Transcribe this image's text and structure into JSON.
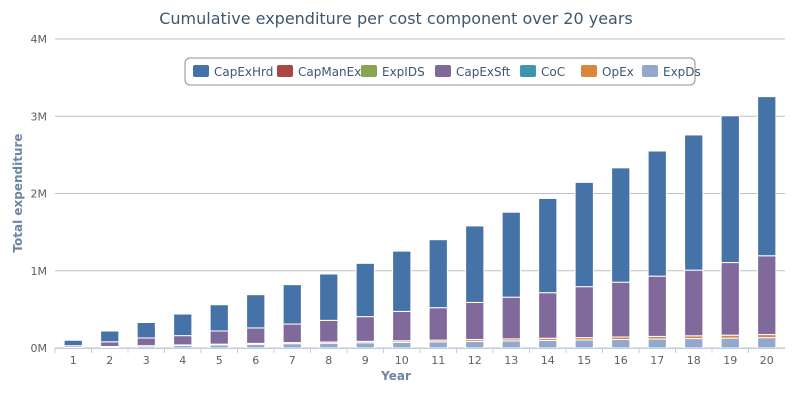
{
  "chart_data": {
    "type": "bar",
    "stacked": true,
    "title": "Cumulative expenditure per cost component over 20 years",
    "xlabel": "Year",
    "ylabel": "Total expenditure",
    "categories": [
      "1",
      "2",
      "3",
      "4",
      "5",
      "6",
      "7",
      "8",
      "9",
      "10",
      "11",
      "12",
      "13",
      "14",
      "15",
      "16",
      "17",
      "18",
      "19",
      "20"
    ],
    "ylim": [
      0,
      4000000
    ],
    "yticks": [
      0,
      1000000,
      2000000,
      3000000,
      4000000
    ],
    "ytick_labels": [
      "0M",
      "1M",
      "2M",
      "3M",
      "4M"
    ],
    "grid": true,
    "legend_position": "top-right",
    "series": [
      {
        "name": "ExpDs",
        "color": "#92a8cd",
        "values": [
          8000,
          16000,
          24000,
          32000,
          40000,
          48000,
          56000,
          62000,
          68000,
          74000,
          80000,
          86000,
          92000,
          98000,
          104000,
          110000,
          116000,
          122000,
          128000,
          134000
        ]
      },
      {
        "name": "OpEx",
        "color": "#db843d",
        "values": [
          2000,
          4000,
          6000,
          8000,
          10000,
          12000,
          14000,
          16000,
          18000,
          20000,
          22000,
          24000,
          26000,
          28000,
          30000,
          32000,
          34000,
          36000,
          38000,
          40000
        ]
      },
      {
        "name": "CoC",
        "color": "#3d96ae",
        "values": [
          0,
          0,
          0,
          0,
          0,
          0,
          0,
          0,
          0,
          0,
          0,
          0,
          0,
          0,
          0,
          0,
          0,
          0,
          0,
          0
        ]
      },
      {
        "name": "CapExSft",
        "color": "#80699b",
        "values": [
          20000,
          60000,
          100000,
          120000,
          170000,
          200000,
          240000,
          280000,
          320000,
          380000,
          420000,
          480000,
          540000,
          590000,
          660000,
          710000,
          780000,
          850000,
          940000,
          1020000
        ]
      },
      {
        "name": "ExpIDS",
        "color": "#89a54e",
        "values": [
          0,
          0,
          0,
          0,
          0,
          0,
          0,
          0,
          0,
          0,
          0,
          0,
          0,
          0,
          0,
          0,
          0,
          0,
          0,
          0
        ]
      },
      {
        "name": "CapManEx",
        "color": "#aa4643",
        "values": [
          0,
          0,
          0,
          0,
          0,
          0,
          0,
          0,
          0,
          0,
          0,
          0,
          0,
          0,
          0,
          0,
          0,
          0,
          0,
          0
        ]
      },
      {
        "name": "CapExHrd",
        "color": "#4572a7",
        "values": [
          70000,
          140000,
          200000,
          280000,
          340000,
          430000,
          510000,
          600000,
          690000,
          780000,
          880000,
          990000,
          1100000,
          1220000,
          1350000,
          1480000,
          1620000,
          1750000,
          1900000,
          2060000
        ]
      }
    ],
    "legend_order": [
      "CapExHrd",
      "CapManEx",
      "ExpIDS",
      "CapExSft",
      "CoC",
      "OpEx",
      "ExpDs"
    ]
  }
}
